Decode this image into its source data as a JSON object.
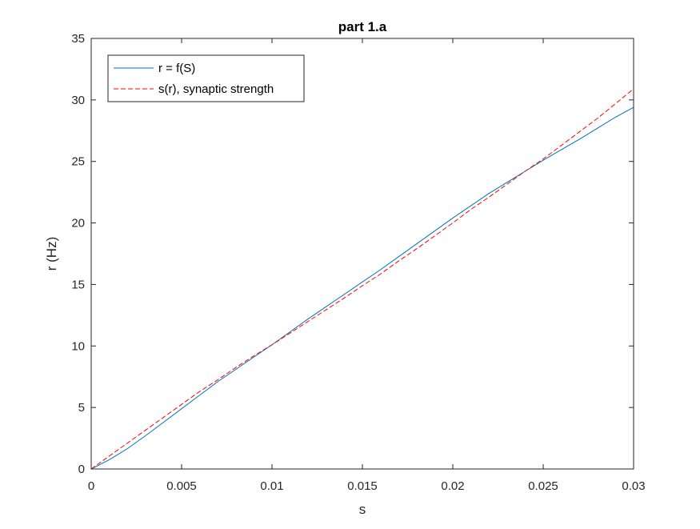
{
  "chart_data": {
    "type": "line",
    "title": "part 1.a",
    "xlabel": "s",
    "ylabel": "r (Hz)",
    "xlim": [
      0,
      0.03
    ],
    "ylim": [
      0,
      35
    ],
    "xticks": [
      0,
      0.005,
      0.01,
      0.015,
      0.02,
      0.025,
      0.03
    ],
    "xtick_labels": [
      "0",
      "0.005",
      "0.01",
      "0.015",
      "0.02",
      "0.025",
      "0.03"
    ],
    "yticks": [
      0,
      5,
      10,
      15,
      20,
      25,
      30,
      35
    ],
    "ytick_labels": [
      "0",
      "5",
      "10",
      "15",
      "20",
      "25",
      "30",
      "35"
    ],
    "grid": false,
    "box": true,
    "legend_position": "top-left",
    "series": [
      {
        "name": "r = f(S)",
        "style": "solid",
        "color": "#0072BD",
        "x": [
          0,
          0.001,
          0.002,
          0.003,
          0.004,
          0.005,
          0.006,
          0.007,
          0.008,
          0.009,
          0.01,
          0.011,
          0.012,
          0.013,
          0.014,
          0.015,
          0.016,
          0.017,
          0.018,
          0.019,
          0.02,
          0.021,
          0.022,
          0.023,
          0.024,
          0.025,
          0.026,
          0.027,
          0.028,
          0.029,
          0.03
        ],
        "y": [
          0,
          0.75,
          1.65,
          2.7,
          3.8,
          4.9,
          6.0,
          7.1,
          8.1,
          9.1,
          10.1,
          11.15,
          12.2,
          13.2,
          14.2,
          15.2,
          16.2,
          17.25,
          18.3,
          19.35,
          20.4,
          21.4,
          22.4,
          23.3,
          24.2,
          25.1,
          25.95,
          26.8,
          27.7,
          28.6,
          29.4
        ]
      },
      {
        "name": "s(r), synaptic strength",
        "style": "dashed",
        "color": "#FF0000",
        "x": [
          0,
          0.001,
          0.002,
          0.003,
          0.004,
          0.005,
          0.006,
          0.007,
          0.008,
          0.009,
          0.01,
          0.011,
          0.012,
          0.013,
          0.014,
          0.015,
          0.016,
          0.017,
          0.018,
          0.019,
          0.02,
          0.021,
          0.022,
          0.023,
          0.024,
          0.025,
          0.026,
          0.027,
          0.028,
          0.029,
          0.03
        ],
        "y": [
          0,
          1.05,
          2.1,
          3.15,
          4.2,
          5.25,
          6.3,
          7.25,
          8.25,
          9.2,
          10.1,
          11.05,
          12.0,
          12.95,
          13.9,
          14.9,
          15.85,
          16.9,
          17.9,
          18.95,
          20.0,
          21.1,
          22.1,
          23.15,
          24.2,
          25.2,
          26.3,
          27.4,
          28.5,
          29.7,
          30.9
        ]
      }
    ]
  }
}
